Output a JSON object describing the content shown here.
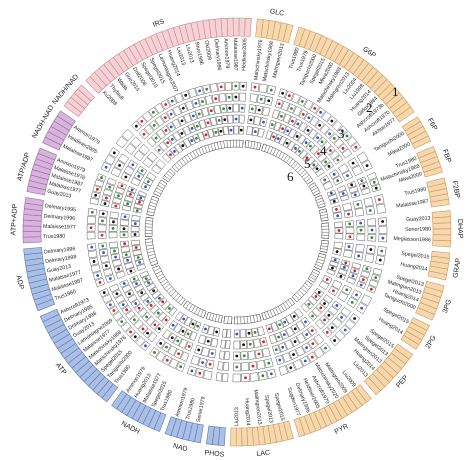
{
  "ring_numbers": [
    "1",
    "2",
    "3",
    "4",
    "5",
    "6"
  ],
  "colors": {
    "pink": "#f6d2d6",
    "pink_stroke": "#c98a92",
    "purple": "#d8b3dd",
    "purple_stroke": "#9a6aa1",
    "blue": "#a9bfe6",
    "blue_stroke": "#5f79b0",
    "orange": "#f7d7ad",
    "orange_stroke": "#c89a5b",
    "black": "#111111",
    "green": "#2e8b2e",
    "red": "#d62020",
    "bluedot": "#2a56c6"
  },
  "metabolites": [
    {
      "name": "IRS",
      "group": "pink",
      "refs": [
        "Xu2008",
        "Thyfault",
        "Wada",
        "Guo2014",
        "Doil2008",
        "Spegel2015",
        "Spegel2015",
        "Lamontagne2007",
        "Huang2014",
        "Liu2013",
        "Liu2013",
        "Brun1996",
        "Oki2009",
        "Delmary1996",
        "Ammon1979",
        "Malaisse1987",
        "Heidiiner2005"
      ]
    },
    {
      "name": "NADH/NAD",
      "group": "pink",
      "refs": []
    },
    {
      "name": "NADH-NAD",
      "group": "purple",
      "refs": [
        "Malaisse1987",
        "Heidiiner2005",
        "Ammon1979"
      ]
    },
    {
      "name": "ATP/ADP",
      "group": "purple",
      "refs": [
        "Guay2013",
        "Malaisse1977",
        "Malaisse1987",
        "Malaisse1976",
        "Ammon1979"
      ]
    },
    {
      "name": "ATP+ADP",
      "group": "purple",
      "refs": [
        "Trus1980",
        "Malaisse1977",
        "Delmary1996",
        "Delmary1995"
      ]
    },
    {
      "name": "ADP",
      "group": "blue",
      "refs": [
        "Trus1980",
        "Malaisse1987",
        "Malaisse1977",
        "Guay2013",
        "Delmary1998",
        "Delmary1996"
      ]
    },
    {
      "name": "ATP",
      "group": "blue",
      "refs": [
        "Trus1980",
        "Taniguchi2000",
        "Spegel2015",
        "Matschinsky1976",
        "Matschinsky1968",
        "Malaisse1977",
        "Lamontagne2009",
        "Guay2013",
        "Delmary1998",
        "Delmary1995",
        "Ashcroft1973"
      ]
    },
    {
      "name": "NADH",
      "group": "blue",
      "refs": [
        "Trus1980",
        "Spegel2015",
        "Malaisse1977",
        "Huang2013",
        "Ammon1979"
      ]
    },
    {
      "name": "NAD",
      "group": "blue",
      "refs": [
        "Sener1979",
        "Trus1980",
        "Ammon1979"
      ]
    },
    {
      "name": "PHOS",
      "group": "blue",
      "refs": []
    },
    {
      "name": "LAC",
      "group": "orange",
      "refs": [
        "Spegel2015",
        "Spegel2013",
        "Malmgren2013",
        "Huang2014",
        "Liu2013"
      ]
    },
    {
      "name": "PYR",
      "group": "orange",
      "refs": [
        "Liu2009",
        "Malmgren2009",
        "Matschinsky2020",
        "Ashcroft1970",
        "Heidiiner2005",
        "Delmary1996",
        "Sugden1977"
      ]
    },
    {
      "name": "PEP",
      "group": "orange",
      "refs": [
        "Spegel2015",
        "Spegel2013",
        "Malmgren2013",
        "Huang2014",
        "Liu2013"
      ]
    },
    {
      "name": "2PG",
      "group": "orange",
      "refs": [
        "Spegel2015",
        "Huang2014"
      ]
    },
    {
      "name": "3PG",
      "group": "orange",
      "refs": [
        "Spegel2013",
        "Malmgren2013",
        "Huang2014",
        "Taniguchi2000"
      ]
    },
    {
      "name": "GRAP",
      "group": "orange",
      "refs": [
        "Spegel2015",
        "Huang2014"
      ]
    },
    {
      "name": "DHAP",
      "group": "orange",
      "refs": [
        "Guay2013",
        "Sener1980",
        "Megiasson1986"
      ]
    },
    {
      "name": "F2BP",
      "group": "orange",
      "refs": [
        "Trus1980",
        "Malaisse1987"
      ]
    },
    {
      "name": "FBP",
      "group": "orange",
      "refs": [
        "Trus1980",
        "Matschinsky1968",
        "Miwa2000"
      ]
    },
    {
      "name": "F6P",
      "group": "orange",
      "refs": [
        "Taniguchi2000",
        "Miwa2000"
      ]
    },
    {
      "name": "G6P",
      "group": "orange",
      "refs": [
        "Trus1980",
        "Trus1979",
        "Taniguchi2000",
        "Spegel2015",
        "Miwa2000",
        "Matschinsky1968",
        "Malmgren2013",
        "Liu2004",
        "Liu1998",
        "Huang2014",
        "Girlox1984",
        "Ashcroft1973b",
        "Ashcroft1970",
        "Akhtar1977"
      ]
    },
    {
      "name": "GLC",
      "group": "orange",
      "refs": [
        "Matschinsky1976",
        "Matschinsky1968",
        "Malmgren2013"
      ]
    }
  ]
}
